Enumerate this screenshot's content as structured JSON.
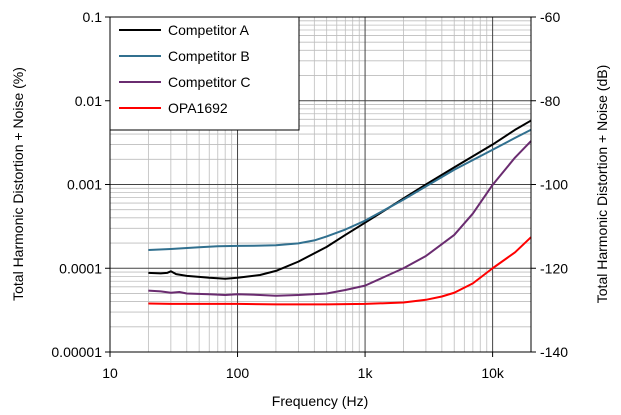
{
  "chart_data": {
    "type": "line",
    "title": "",
    "xlabel": "Frequency (Hz)",
    "ylabel": "Total Harmonic Distortion + Noise (%)",
    "y2label": "Total Harmonic Distortion + Noise (dB)",
    "xscale": "log",
    "yscale": "log",
    "xlim": [
      10,
      20000
    ],
    "ylim": [
      1e-05,
      0.1
    ],
    "y2lim": [
      -140,
      -60
    ],
    "grid": true,
    "legend_position": "top-left",
    "x_ticks": [
      {
        "value": 10,
        "label": "10"
      },
      {
        "value": 100,
        "label": "100"
      },
      {
        "value": 1000,
        "label": "1k"
      },
      {
        "value": 10000,
        "label": "10k"
      }
    ],
    "y_ticks": [
      {
        "value": 1e-05,
        "label": "0.00001"
      },
      {
        "value": 0.0001,
        "label": "0.0001"
      },
      {
        "value": 0.001,
        "label": "0.001"
      },
      {
        "value": 0.01,
        "label": "0.01"
      },
      {
        "value": 0.1,
        "label": "0.1"
      }
    ],
    "y2_ticks": [
      {
        "value": -140,
        "label": "-140"
      },
      {
        "value": -120,
        "label": "-120"
      },
      {
        "value": -100,
        "label": "-100"
      },
      {
        "value": -80,
        "label": "-80"
      },
      {
        "value": -60,
        "label": "-60"
      }
    ],
    "series": [
      {
        "name": "Competitor A",
        "color": "#000000",
        "points": [
          [
            20,
            8.8e-05
          ],
          [
            25,
            8.7e-05
          ],
          [
            28,
            8.8e-05
          ],
          [
            30,
            9.2e-05
          ],
          [
            33,
            8.5e-05
          ],
          [
            40,
            8.1e-05
          ],
          [
            50,
            7.9e-05
          ],
          [
            60,
            7.7e-05
          ],
          [
            70,
            7.6e-05
          ],
          [
            80,
            7.5e-05
          ],
          [
            100,
            7.7e-05
          ],
          [
            150,
            8.3e-05
          ],
          [
            200,
            9.3e-05
          ],
          [
            300,
            0.00012
          ],
          [
            500,
            0.00018
          ],
          [
            700,
            0.00025
          ],
          [
            1000,
            0.00035
          ],
          [
            2000,
            0.00068
          ],
          [
            3000,
            0.001
          ],
          [
            5000,
            0.0016
          ],
          [
            10000,
            0.003
          ],
          [
            15000,
            0.0045
          ],
          [
            20000,
            0.0058
          ]
        ]
      },
      {
        "name": "Competitor B",
        "color": "#31708f",
        "points": [
          [
            20,
            0.000165
          ],
          [
            30,
            0.00017
          ],
          [
            50,
            0.000178
          ],
          [
            70,
            0.000183
          ],
          [
            100,
            0.000185
          ],
          [
            150,
            0.000186
          ],
          [
            200,
            0.000188
          ],
          [
            300,
            0.000198
          ],
          [
            400,
            0.000215
          ],
          [
            500,
            0.00024
          ],
          [
            700,
            0.00029
          ],
          [
            1000,
            0.00037
          ],
          [
            2000,
            0.00066
          ],
          [
            3000,
            0.00095
          ],
          [
            5000,
            0.0015
          ],
          [
            10000,
            0.0026
          ],
          [
            15000,
            0.0036
          ],
          [
            20000,
            0.0045
          ]
        ]
      },
      {
        "name": "Competitor C",
        "color": "#6a2c70",
        "points": [
          [
            20,
            5.4e-05
          ],
          [
            25,
            5.3e-05
          ],
          [
            30,
            5.1e-05
          ],
          [
            35,
            5.2e-05
          ],
          [
            40,
            5e-05
          ],
          [
            60,
            4.9e-05
          ],
          [
            80,
            4.8e-05
          ],
          [
            100,
            4.9e-05
          ],
          [
            150,
            4.8e-05
          ],
          [
            200,
            4.7e-05
          ],
          [
            300,
            4.8e-05
          ],
          [
            500,
            5e-05
          ],
          [
            700,
            5.5e-05
          ],
          [
            1000,
            6.2e-05
          ],
          [
            2000,
            0.0001
          ],
          [
            3000,
            0.00014
          ],
          [
            5000,
            0.00025
          ],
          [
            7000,
            0.00045
          ],
          [
            10000,
            0.00099
          ],
          [
            15000,
            0.0021
          ],
          [
            20000,
            0.0033
          ]
        ]
      },
      {
        "name": "OPA1692",
        "color": "#ff0000",
        "points": [
          [
            20,
            3.8e-05
          ],
          [
            30,
            3.75e-05
          ],
          [
            50,
            3.75e-05
          ],
          [
            100,
            3.75e-05
          ],
          [
            200,
            3.7e-05
          ],
          [
            500,
            3.7e-05
          ],
          [
            1000,
            3.75e-05
          ],
          [
            2000,
            3.9e-05
          ],
          [
            3000,
            4.2e-05
          ],
          [
            4000,
            4.6e-05
          ],
          [
            5000,
            5.1e-05
          ],
          [
            7000,
            6.6e-05
          ],
          [
            10000,
            0.0001
          ],
          [
            15000,
            0.000155
          ],
          [
            20000,
            0.000235
          ]
        ]
      }
    ]
  }
}
